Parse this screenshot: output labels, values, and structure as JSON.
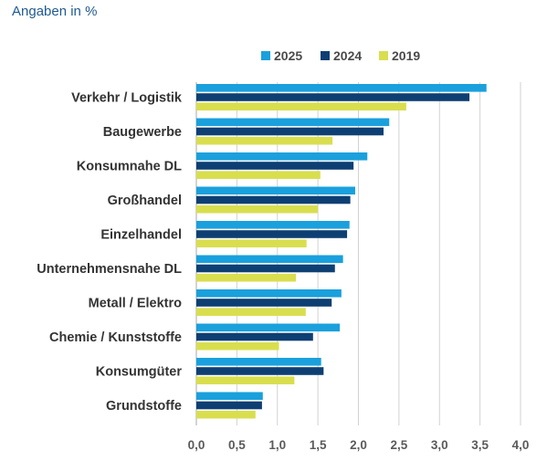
{
  "chart_data": {
    "type": "bar",
    "orientation": "horizontal",
    "unit_label": "Angaben in %",
    "categories": [
      "Verkehr / Logistik",
      "Baugewerbe",
      "Konsumnahe DL",
      "Großhandel",
      "Einzelhandel",
      "Unternehmensnahe DL",
      "Metall / Elektro",
      "Chemie / Kunststoffe",
      "Konsumgüter",
      "Grundstoffe"
    ],
    "series": [
      {
        "name": "2025",
        "color": "#1aa0dc",
        "values": [
          3.58,
          2.38,
          2.11,
          1.96,
          1.89,
          1.81,
          1.79,
          1.77,
          1.54,
          0.82
        ]
      },
      {
        "name": "2024",
        "color": "#0e3f73",
        "values": [
          3.37,
          2.31,
          1.94,
          1.9,
          1.86,
          1.71,
          1.67,
          1.44,
          1.57,
          0.81
        ]
      },
      {
        "name": "2019",
        "color": "#d9de4f",
        "values": [
          2.59,
          1.68,
          1.53,
          1.5,
          1.36,
          1.23,
          1.35,
          1.02,
          1.21,
          0.73
        ]
      }
    ],
    "xlim": [
      0,
      4.0
    ],
    "xticks": [
      "0,0",
      "0,5",
      "1,0",
      "1,5",
      "2,0",
      "2,5",
      "3,0",
      "3,5",
      "4,0"
    ],
    "grid": true,
    "legend_position": "top"
  }
}
